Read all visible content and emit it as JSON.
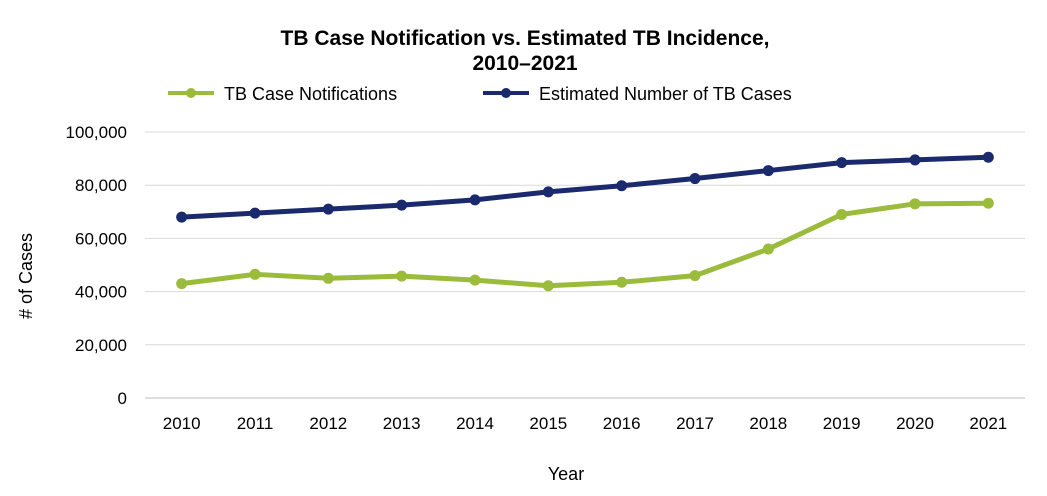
{
  "chart_data": {
    "type": "line",
    "title_line1": "TB Case Notification vs. Estimated TB Incidence,",
    "title_line2": "2010–2021",
    "xlabel": "Year",
    "ylabel": "# of Cases",
    "categories": [
      "2010",
      "2011",
      "2012",
      "2013",
      "2014",
      "2015",
      "2016",
      "2017",
      "2018",
      "2019",
      "2020",
      "2021"
    ],
    "ylim": [
      0,
      100000
    ],
    "yticks": [
      0,
      20000,
      40000,
      60000,
      80000,
      100000
    ],
    "ytick_labels": [
      "0",
      "20,000",
      "40,000",
      "60,000",
      "80,000",
      "100,000"
    ],
    "grid": true,
    "legend_position": "top",
    "series": [
      {
        "name": "TB Case Notifications",
        "color": "#9bbb3b",
        "values": [
          43000,
          46500,
          45000,
          45800,
          44300,
          42200,
          43500,
          46000,
          56000,
          69000,
          73000,
          73200
        ]
      },
      {
        "name": "Estimated Number of TB Cases",
        "color": "#1a2a6c",
        "values": [
          68000,
          69500,
          71000,
          72500,
          74500,
          77500,
          79800,
          82500,
          85500,
          88500,
          89500,
          90500
        ]
      }
    ]
  }
}
